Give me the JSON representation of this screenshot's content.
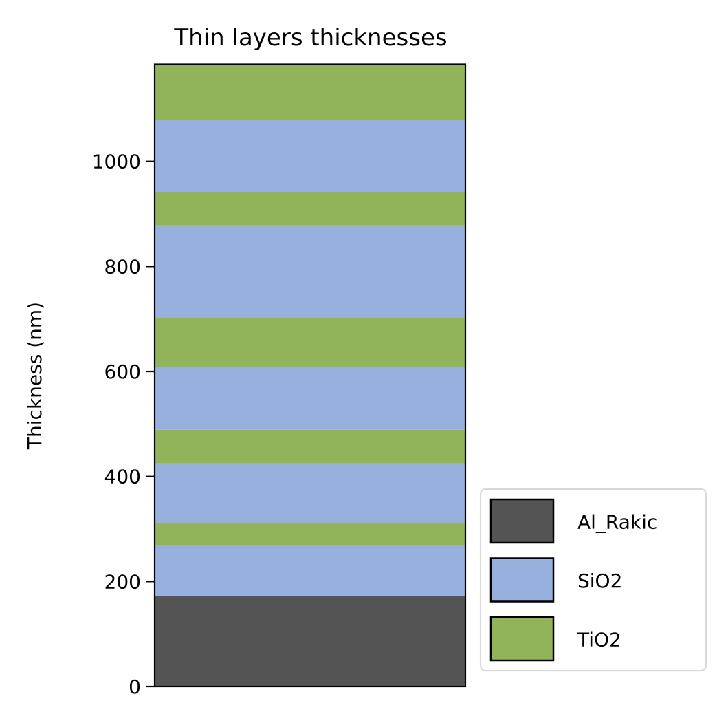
{
  "chart_data": {
    "type": "bar",
    "stacked": true,
    "title": "Thin layers thicknesses",
    "xlabel": "",
    "ylabel": "Thickness (nm)",
    "ylim": [
      0,
      1185
    ],
    "yticks": [
      0,
      200,
      400,
      600,
      800,
      1000
    ],
    "grid": false,
    "legend_position": "lower right, outside axes",
    "layers": [
      {
        "material": "Al_Rakic",
        "thickness": 173
      },
      {
        "material": "SiO2",
        "thickness": 95
      },
      {
        "material": "TiO2",
        "thickness": 43
      },
      {
        "material": "SiO2",
        "thickness": 114
      },
      {
        "material": "TiO2",
        "thickness": 64
      },
      {
        "material": "SiO2",
        "thickness": 120
      },
      {
        "material": "TiO2",
        "thickness": 94
      },
      {
        "material": "SiO2",
        "thickness": 175
      },
      {
        "material": "TiO2",
        "thickness": 64
      },
      {
        "material": "SiO2",
        "thickness": 137
      },
      {
        "material": "TiO2",
        "thickness": 106
      }
    ],
    "legend": [
      {
        "name": "Al_Rakic",
        "color": "#545454"
      },
      {
        "name": "SiO2",
        "color": "#98b0de"
      },
      {
        "name": "TiO2",
        "color": "#91b45a"
      }
    ]
  }
}
